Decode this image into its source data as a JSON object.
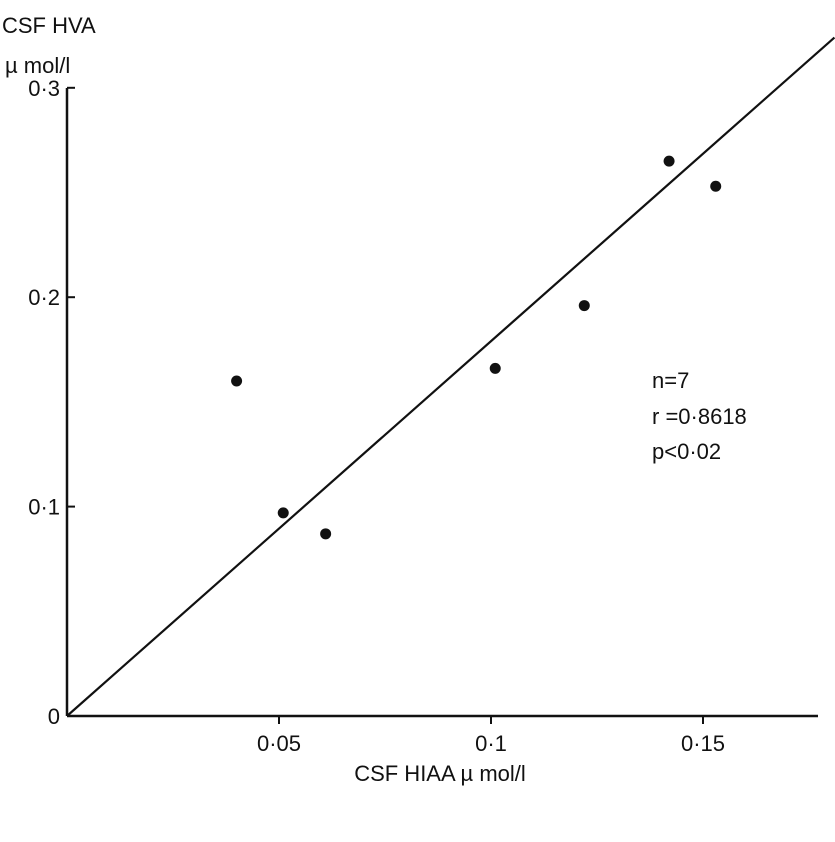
{
  "chart_data": {
    "type": "scatter",
    "title": "",
    "ylabel_line1": "CSF HVA",
    "ylabel_line2": "µ mol/l",
    "xlabel": "CSF HIAA µ mol/l",
    "xlim": [
      0,
      0.18
    ],
    "ylim": [
      0,
      0.3
    ],
    "x_ticks": [
      {
        "value": 0.05,
        "label": "0·05"
      },
      {
        "value": 0.1,
        "label": "0·1"
      },
      {
        "value": 0.15,
        "label": "0·15"
      }
    ],
    "y_ticks": [
      {
        "value": 0,
        "label": "0"
      },
      {
        "value": 0.1,
        "label": "0·1"
      },
      {
        "value": 0.2,
        "label": "0·2"
      },
      {
        "value": 0.3,
        "label": "0·3"
      }
    ],
    "points": [
      {
        "x": 0.04,
        "y": 0.16
      },
      {
        "x": 0.051,
        "y": 0.097
      },
      {
        "x": 0.061,
        "y": 0.087
      },
      {
        "x": 0.101,
        "y": 0.166
      },
      {
        "x": 0.122,
        "y": 0.196
      },
      {
        "x": 0.142,
        "y": 0.265
      },
      {
        "x": 0.153,
        "y": 0.253
      }
    ],
    "regression_line": {
      "x": [
        0,
        0.181
      ],
      "y": [
        0,
        0.324
      ]
    },
    "annotations": [
      "n=7",
      "r =0·8618",
      "p<0·02"
    ],
    "grid": false,
    "colors": {
      "ink": "#111111",
      "background": "#ffffff"
    }
  }
}
